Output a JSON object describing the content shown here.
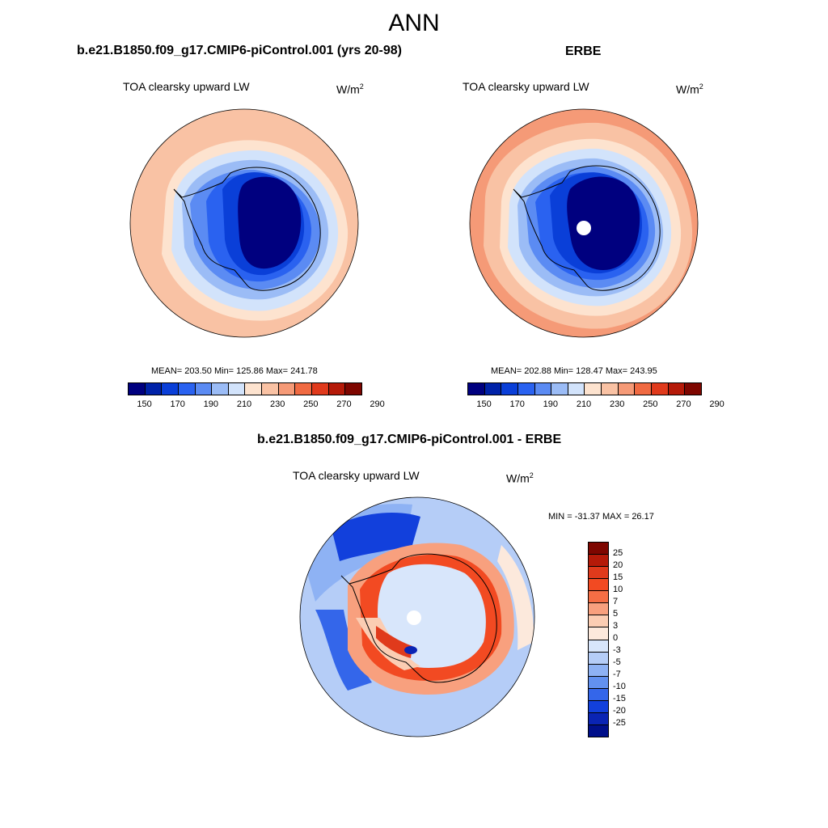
{
  "figure": {
    "title": "ANN"
  },
  "panels": [
    {
      "title": "b.e21.B1850.f09_g17.CMIP6-piControl.001 (yrs 20-98)",
      "variable": "TOA clearsky upward LW",
      "units_base": "W/m",
      "units_exp": "2",
      "stats": "MEAN= 203.50  Min= 125.86  Max= 241.78",
      "colorbar_ticks": [
        "150",
        "170",
        "190",
        "210",
        "230",
        "250",
        "270",
        "290"
      ]
    },
    {
      "title": "ERBE",
      "variable": "TOA clearsky upward LW",
      "units_base": "W/m",
      "units_exp": "2",
      "stats": "MEAN= 202.88  Min= 128.47  Max= 243.95",
      "colorbar_ticks": [
        "150",
        "170",
        "190",
        "210",
        "230",
        "250",
        "270",
        "290"
      ]
    },
    {
      "title": "b.e21.B1850.f09_g17.CMIP6-piControl.001 - ERBE",
      "variable": "TOA clearsky upward LW",
      "units_base": "W/m",
      "units_exp": "2",
      "stats": "MIN = -31.37 MAX =  26.17",
      "colorbar_ticks": [
        "25",
        "20",
        "15",
        "10",
        "7",
        "5",
        "3",
        "0",
        "-3",
        "-5",
        "-7",
        "-10",
        "-15",
        "-20",
        "-25"
      ]
    }
  ],
  "colors": {
    "abs_scale": [
      "#00007f",
      "#0022a8",
      "#0a3fd8",
      "#2a62f0",
      "#5b8bf3",
      "#9bbcf6",
      "#d2e3fb",
      "#fde3cf",
      "#f9c2a4",
      "#f59a77",
      "#f06a42",
      "#e03a1c",
      "#b51a09",
      "#7e0600"
    ],
    "diff_scale": [
      "#7e0600",
      "#b51a09",
      "#e03a1c",
      "#f24a22",
      "#f56e45",
      "#f8a07e",
      "#fbcdb3",
      "#fce9dc",
      "#d8e6fb",
      "#b5cdf7",
      "#8eb2f4",
      "#6291f0",
      "#3466ea",
      "#1240dc",
      "#0a24b4",
      "#000f8a"
    ],
    "coast": "#000000"
  }
}
